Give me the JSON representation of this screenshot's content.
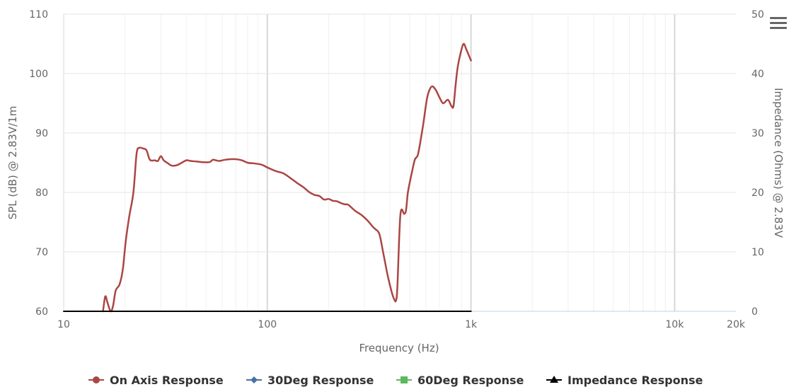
{
  "chart_data": {
    "type": "line",
    "xlabel": "Frequency (Hz)",
    "ylabel": "SPL (dB) @ 2.83V/1m",
    "y2label": "Impedance (Ohms) @ 2.83V",
    "x_scale": "log",
    "xlim": [
      10,
      20000
    ],
    "ylim": [
      60,
      110
    ],
    "y2lim": [
      0,
      50
    ],
    "x_ticks": [
      10,
      100,
      1000,
      10000,
      20000
    ],
    "x_tick_labels": [
      "10",
      "100",
      "1k",
      "10k",
      "20k"
    ],
    "y_ticks": [
      60,
      70,
      80,
      90,
      100,
      110
    ],
    "y2_ticks": [
      0,
      10,
      20,
      30,
      40,
      50
    ],
    "grid": true,
    "legend_position": "bottom",
    "series": [
      {
        "name": "On Axis Response",
        "color": "#aa4643",
        "marker": "circle",
        "axis": "left",
        "x": [
          15.6,
          16,
          16.4,
          17,
          17.5,
          18,
          18.8,
          19.5,
          20.2,
          21,
          22,
          22.8,
          23.5,
          24.5,
          25.5,
          26.5,
          28,
          29,
          30,
          31,
          32.5,
          34,
          36,
          38,
          40,
          42,
          45,
          48,
          52,
          54,
          56,
          58,
          62,
          66,
          70,
          75,
          80,
          85,
          90,
          95,
          100,
          110,
          120,
          130,
          140,
          150,
          160,
          170,
          180,
          190,
          200,
          210,
          220,
          230,
          240,
          250,
          270,
          290,
          310,
          330,
          340,
          355,
          370,
          390,
          410,
          420,
          428,
          435,
          450,
          470,
          480,
          490,
          510,
          530,
          550,
          580,
          610,
          640,
          670,
          700,
          730,
          770,
          800,
          820,
          840,
          860,
          890,
          920,
          950,
          1000
        ],
        "y": [
          60,
          62.5,
          61.5,
          60,
          61,
          63.5,
          64.5,
          67,
          72,
          76,
          80,
          86.5,
          87.5,
          87.4,
          87.1,
          85.5,
          85.4,
          85.3,
          86.1,
          85.4,
          84.9,
          84.5,
          84.6,
          85,
          85.4,
          85.3,
          85.2,
          85.1,
          85.1,
          85.5,
          85.4,
          85.3,
          85.5,
          85.6,
          85.6,
          85.4,
          85,
          84.9,
          84.8,
          84.6,
          84.2,
          83.6,
          83.2,
          82.4,
          81.6,
          80.9,
          80.1,
          79.6,
          79.4,
          78.8,
          78.9,
          78.6,
          78.5,
          78.2,
          78,
          77.9,
          76.9,
          76.2,
          75.3,
          74.2,
          73.8,
          73,
          70,
          66,
          63,
          62,
          61.8,
          64,
          76.2,
          76.4,
          77,
          80,
          83,
          85.5,
          86.5,
          91,
          96,
          97.8,
          97.3,
          96,
          95,
          95.6,
          94.6,
          94.5,
          98,
          101,
          103.5,
          105,
          104,
          102.2
        ]
      },
      {
        "name": "30Deg Response",
        "color": "#4572a7",
        "marker": "diamond",
        "axis": "left",
        "x": [],
        "y": []
      },
      {
        "name": "60Deg Response",
        "color": "#5cb85c",
        "marker": "square",
        "axis": "left",
        "x": [],
        "y": []
      },
      {
        "name": "Impedance Response",
        "color": "#000000",
        "marker": "triangle",
        "axis": "right",
        "x": [
          10,
          1000
        ],
        "y": [
          0,
          0
        ]
      }
    ]
  },
  "ui": {
    "menu_icon": "hamburger-menu-icon"
  }
}
